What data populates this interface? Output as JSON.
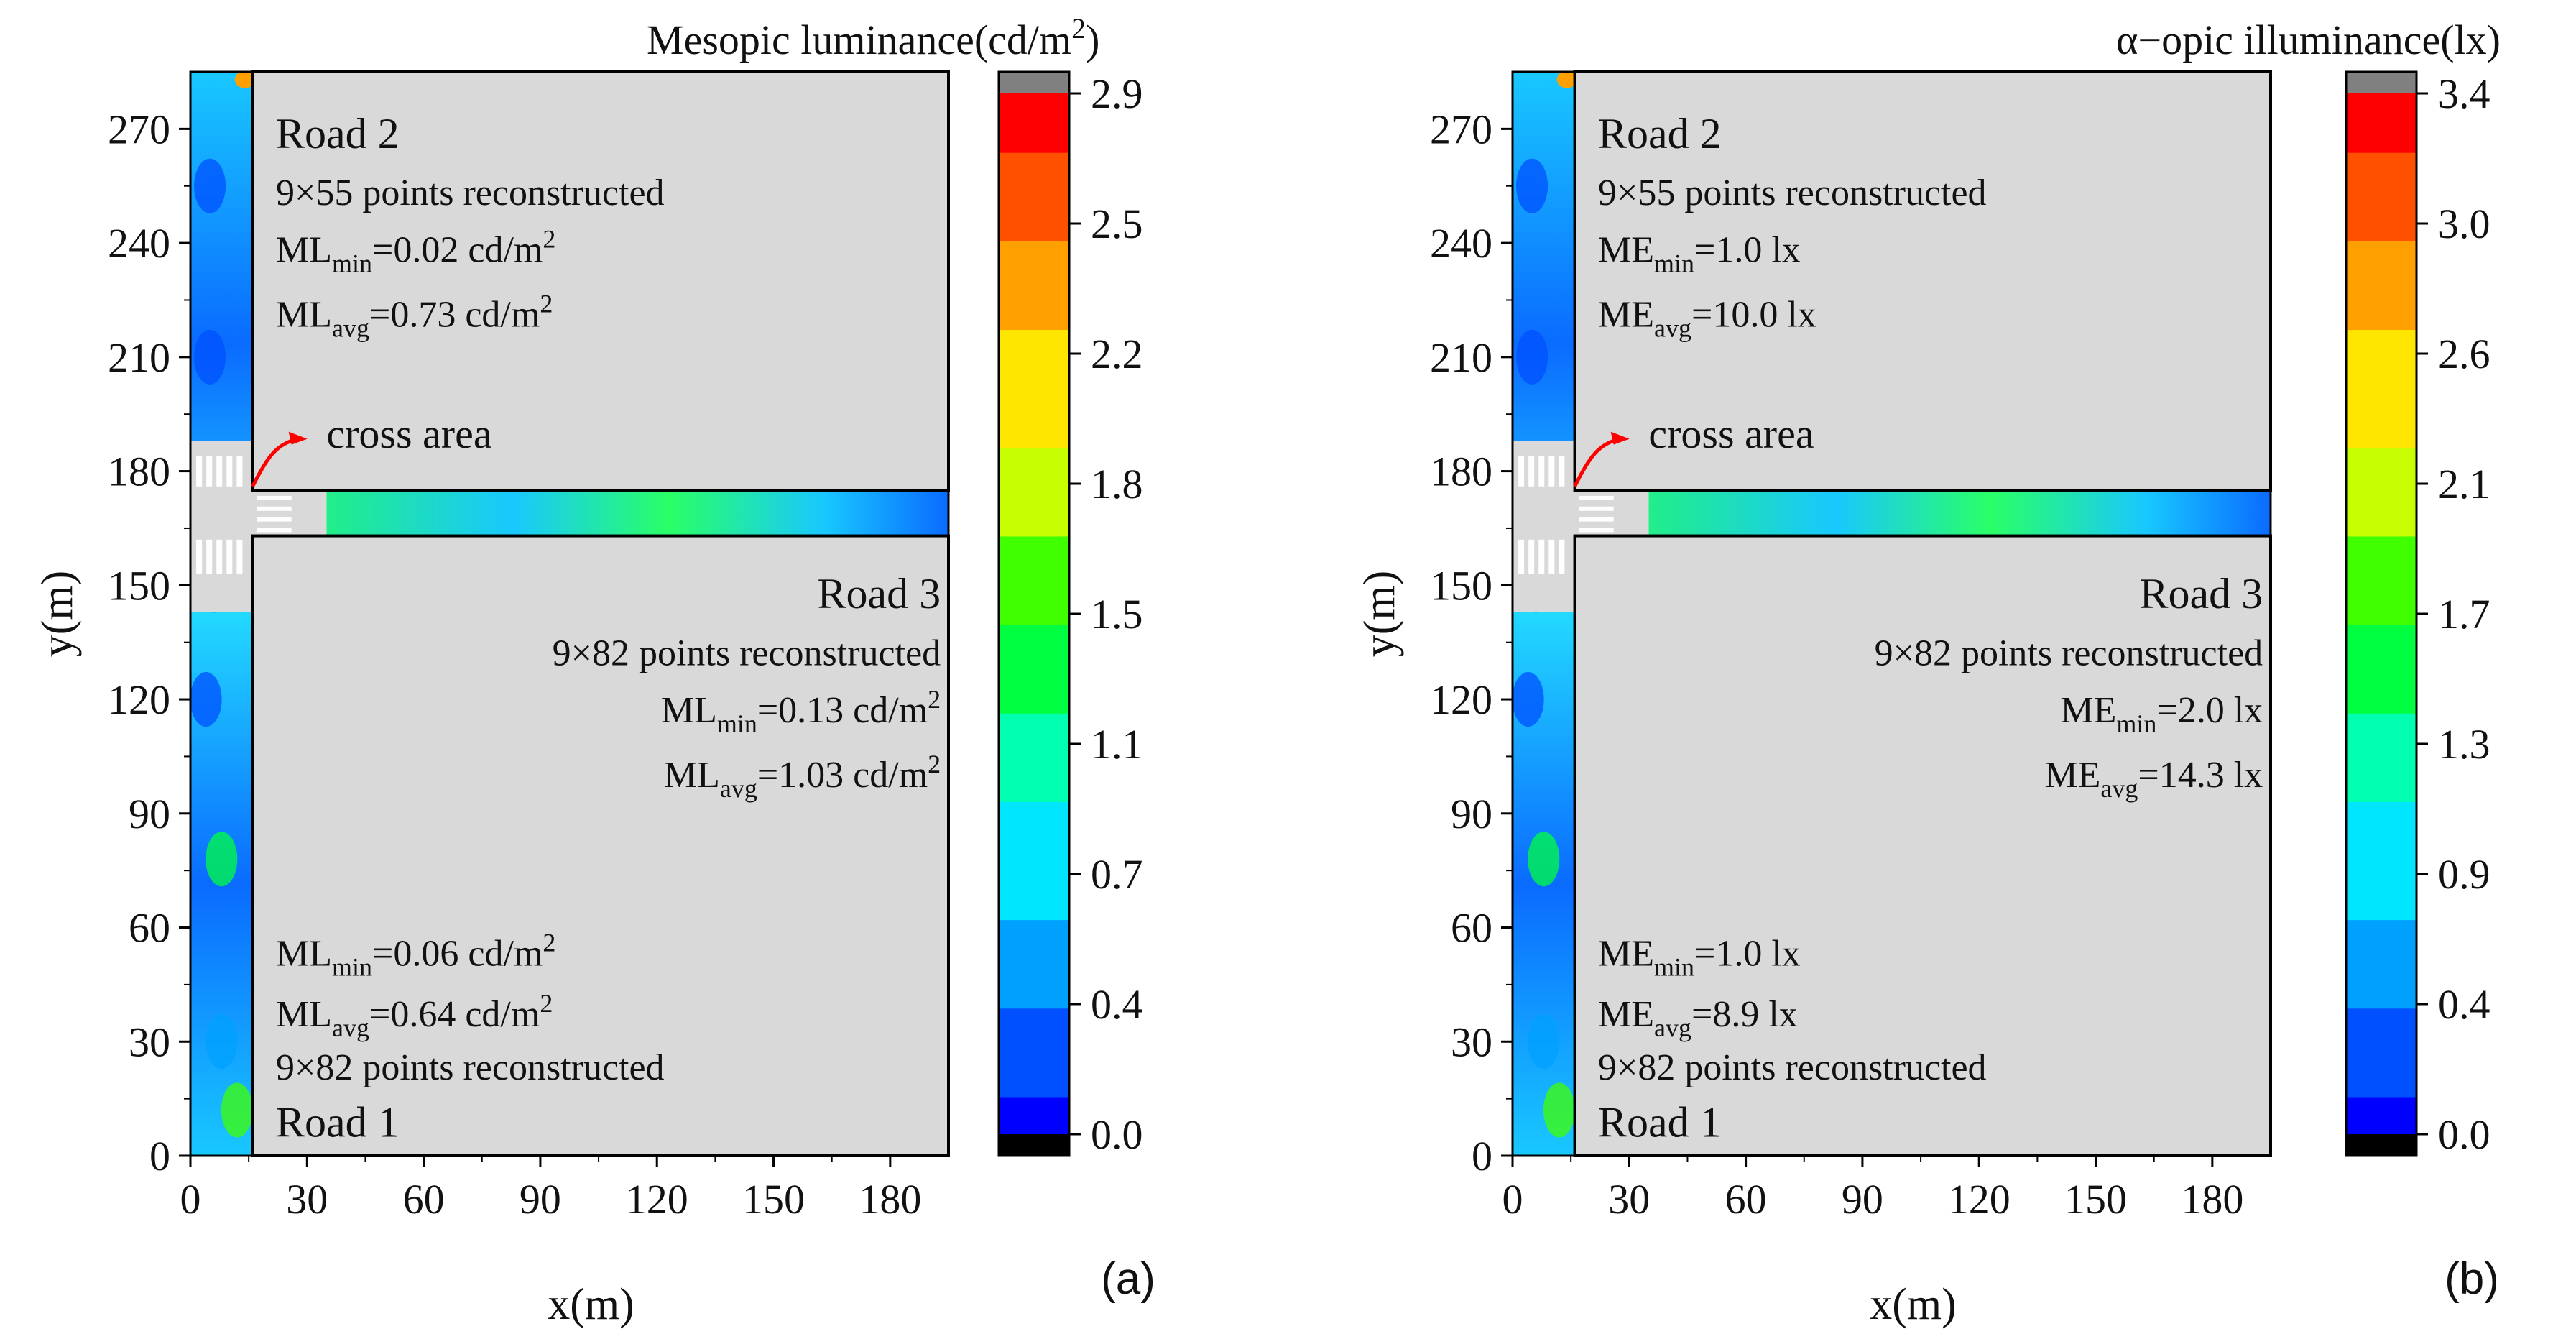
{
  "chart_data": [
    {
      "type": "heatmap",
      "panel_label": "(a)",
      "colorbar_title": "Mesopic luminance(cd/m",
      "colorbar_title_sup": "2",
      "colorbar_title_end": ")",
      "colorbar_ticks": [
        "0.0",
        "0.4",
        "0.7",
        "1.1",
        "1.5",
        "1.8",
        "2.2",
        "2.5",
        "2.9"
      ],
      "colorbar_range": [
        0,
        2.9
      ],
      "xlabel": "x(m)",
      "ylabel": "y(m)",
      "xlim": [
        0,
        195
      ],
      "ylim": [
        0,
        285
      ],
      "xticks": [
        0,
        30,
        60,
        90,
        120,
        150,
        180
      ],
      "yticks": [
        0,
        30,
        60,
        90,
        120,
        150,
        180,
        210,
        240,
        270
      ],
      "cross_area_label": "cross area",
      "roads": {
        "road2": {
          "name": "Road 2",
          "points": "9×55 points reconstructed",
          "min": {
            "prefix": "ML",
            "sub": "min",
            "value": "=0.02 cd/m",
            "sup": "2"
          },
          "avg": {
            "prefix": "ML",
            "sub": "avg",
            "value": "=0.73 cd/m",
            "sup": "2"
          }
        },
        "road3": {
          "name": "Road 3",
          "points": "9×82 points reconstructed",
          "min": {
            "prefix": "ML",
            "sub": "min",
            "value": "=0.13 cd/m",
            "sup": "2"
          },
          "avg": {
            "prefix": "ML",
            "sub": "avg",
            "value": "=1.03 cd/m",
            "sup": "2"
          }
        },
        "road1": {
          "name": "Road 1",
          "points": "9×82 points reconstructed",
          "min": {
            "prefix": "ML",
            "sub": "min",
            "value": "=0.06 cd/m",
            "sup": "2"
          },
          "avg": {
            "prefix": "ML",
            "sub": "avg",
            "value": "=0.64 cd/m",
            "sup": "2"
          }
        }
      }
    },
    {
      "type": "heatmap",
      "panel_label": "(b)",
      "colorbar_title": "α−opic illuminance(lx)",
      "colorbar_title_sup": "",
      "colorbar_title_end": "",
      "colorbar_ticks": [
        "0.0",
        "0.4",
        "0.9",
        "1.3",
        "1.7",
        "2.1",
        "2.6",
        "3.0",
        "3.4"
      ],
      "colorbar_range": [
        0,
        3.4
      ],
      "xlabel": "x(m)",
      "ylabel": "y(m)",
      "xlim": [
        0,
        195
      ],
      "ylim": [
        0,
        285
      ],
      "xticks": [
        0,
        30,
        60,
        90,
        120,
        150,
        180
      ],
      "yticks": [
        0,
        30,
        60,
        90,
        120,
        150,
        180,
        210,
        240,
        270
      ],
      "cross_area_label": "cross area",
      "roads": {
        "road2": {
          "name": "Road 2",
          "points": "9×55 points reconstructed",
          "min": {
            "prefix": "ME",
            "sub": "min",
            "value": "=1.0 lx",
            "sup": ""
          },
          "avg": {
            "prefix": "ME",
            "sub": "avg",
            "value": "=10.0 lx",
            "sup": ""
          }
        },
        "road3": {
          "name": "Road 3",
          "points": "9×82 points reconstructed",
          "min": {
            "prefix": "ME",
            "sub": "min",
            "value": "=2.0 lx",
            "sup": ""
          },
          "avg": {
            "prefix": "ME",
            "sub": "avg",
            "value": "=14.3 lx",
            "sup": ""
          }
        },
        "road1": {
          "name": "Road 1",
          "points": "9×82 points reconstructed",
          "min": {
            "prefix": "ME",
            "sub": "min",
            "value": "=1.0 lx",
            "sup": ""
          },
          "avg": {
            "prefix": "ME",
            "sub": "avg",
            "value": "=8.9 lx",
            "sup": ""
          }
        }
      }
    }
  ],
  "colors": {
    "road_fill": "#d9d9d9",
    "crosswalk": "#c8c8c8",
    "arrow": "#ff0000",
    "over_range": "#808080",
    "under_range": "#000000",
    "colormap": [
      "#0000ff",
      "#0050ff",
      "#00a0ff",
      "#00e6ff",
      "#00ffb0",
      "#00ff40",
      "#40ff00",
      "#c8ff00",
      "#ffe600",
      "#ffa000",
      "#ff5000",
      "#ff0000"
    ]
  }
}
